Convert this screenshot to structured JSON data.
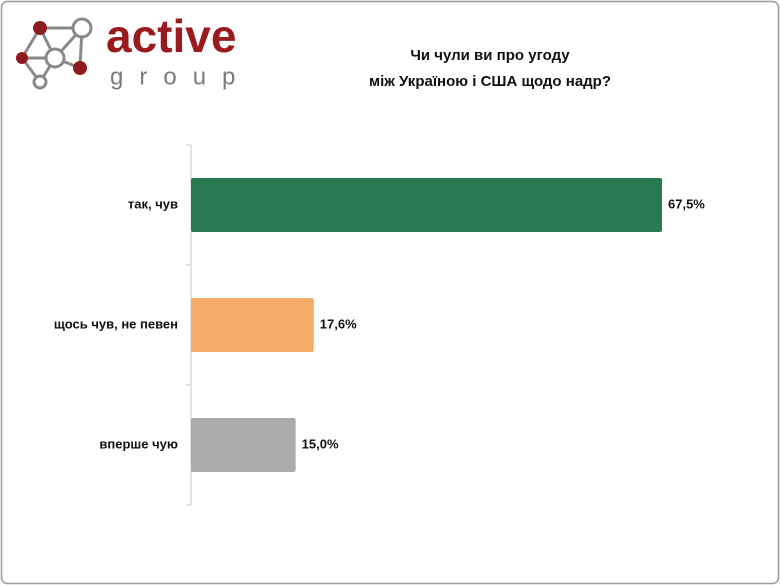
{
  "logo": {
    "name": "active",
    "tagline": "group"
  },
  "chart_data": {
    "type": "barh",
    "title": [
      "Чи чули ви про угоду",
      "між Україною і США щодо надр?"
    ],
    "categories": [
      "так, чув",
      "щось чув, не певен",
      "вперше чую"
    ],
    "values": [
      67.5,
      17.6,
      15.0
    ],
    "value_labels": [
      "67,5%",
      "17,6%",
      "15,0%"
    ],
    "colors": [
      "#277a51",
      "#f4ac6a",
      "#ababab"
    ]
  }
}
